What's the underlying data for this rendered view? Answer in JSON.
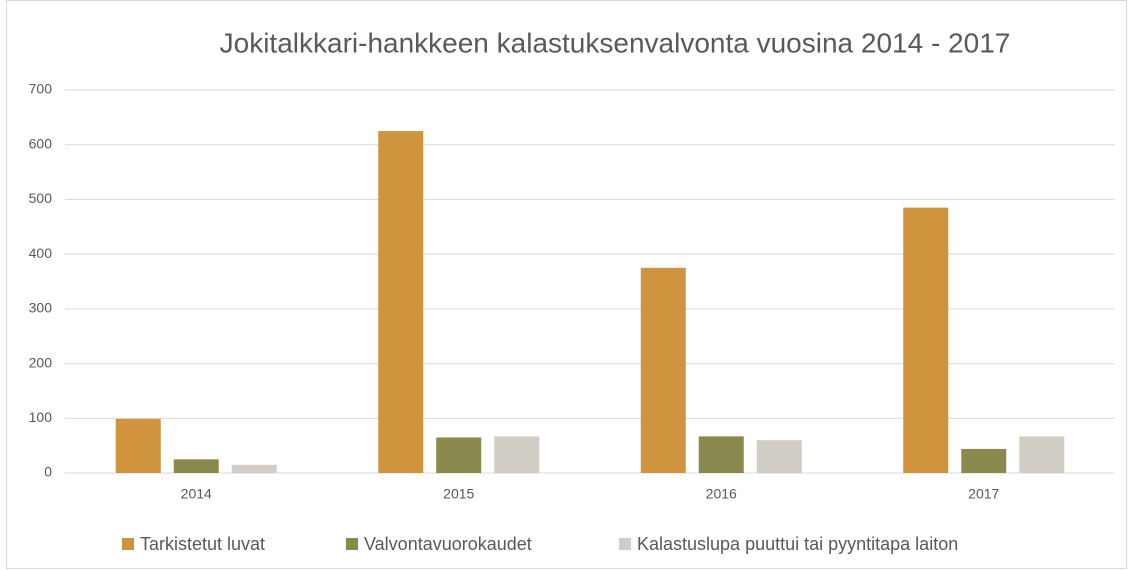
{
  "chart_data": {
    "type": "bar",
    "title": "Jokitalkkari-hankkeen kalastuksenvalvonta vuosina 2014 - 2017",
    "categories": [
      "2014",
      "2015",
      "2016",
      "2017"
    ],
    "series": [
      {
        "name": "Tarkistetut luvat",
        "color": "#d0943f",
        "values": [
          99,
          625,
          375,
          485
        ]
      },
      {
        "name": "Valvontavuorokaudet",
        "color": "#8a8a4f",
        "values": [
          25,
          65,
          67,
          44
        ]
      },
      {
        "name": "Kalastuslupa puuttui tai pyyntitapa laiton",
        "color": "#d2cdc4",
        "values": [
          15,
          67,
          60,
          67
        ]
      }
    ],
    "ylim": [
      0,
      700
    ],
    "yticks": [
      0,
      100,
      200,
      300,
      400,
      500,
      600,
      700
    ],
    "grid": true,
    "legend": "bottom"
  }
}
